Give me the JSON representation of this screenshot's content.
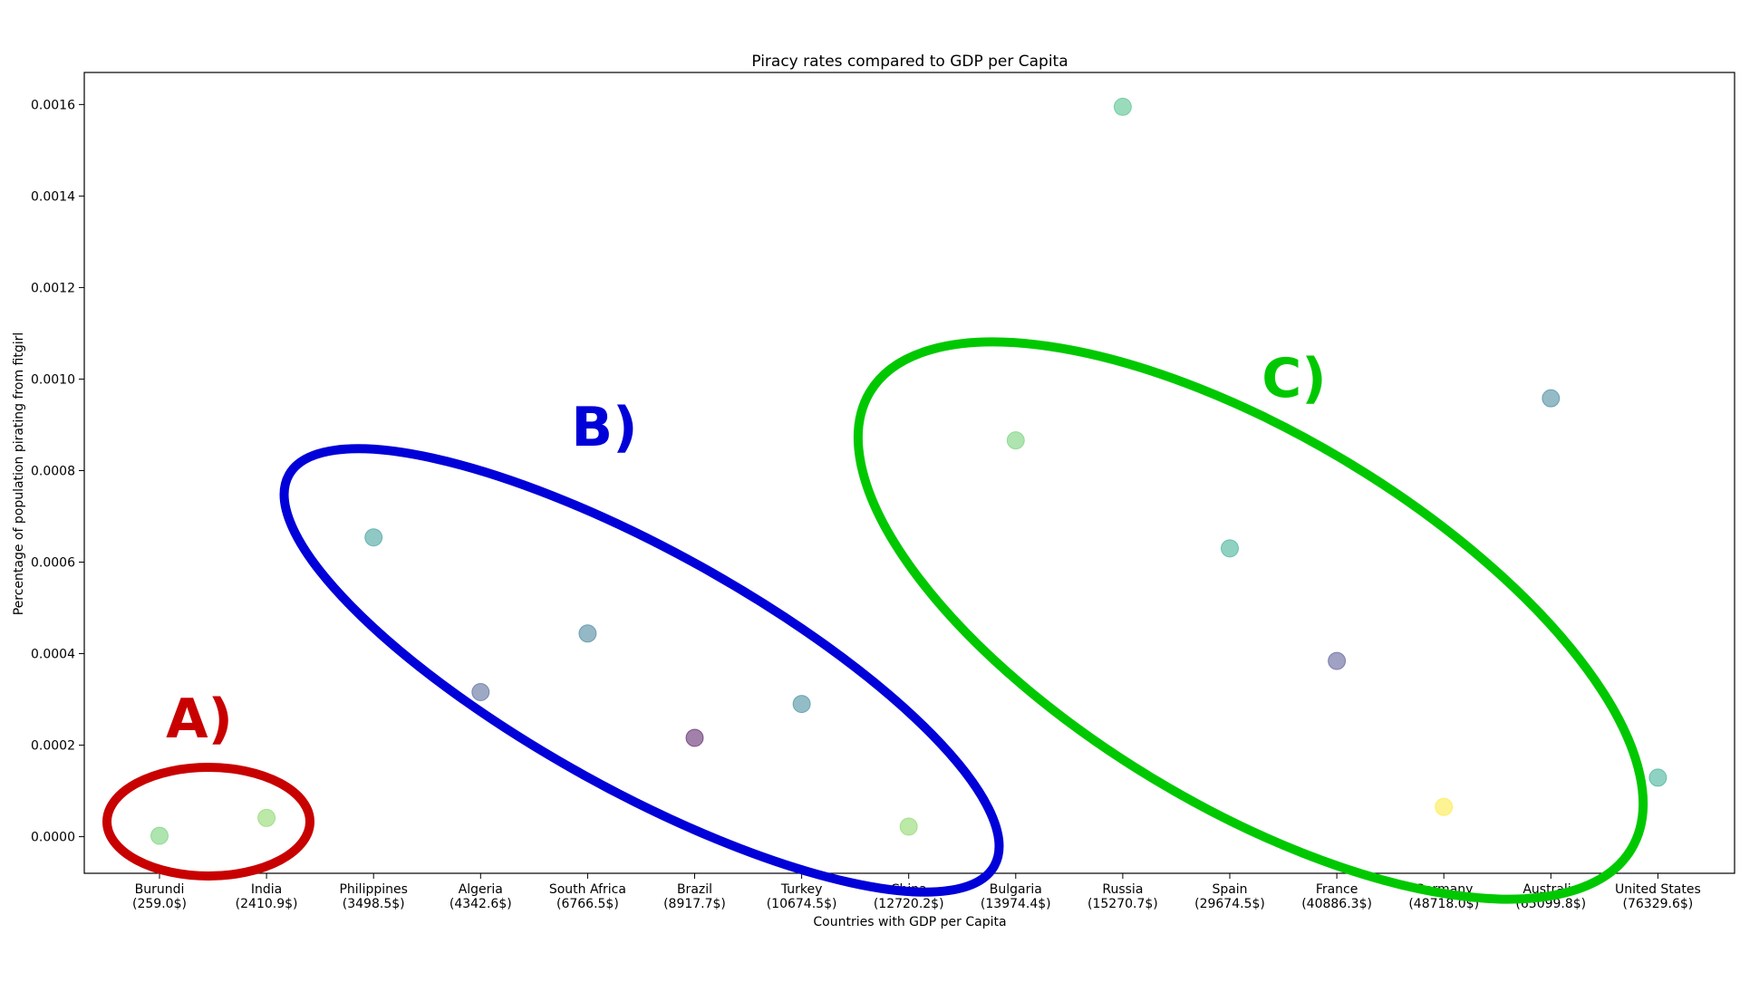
{
  "chart_data": {
    "type": "scatter",
    "title": "Piracy rates compared to GDP per Capita",
    "xlabel": "Countries with GDP per Capita",
    "ylabel": "Percentage of population pirating from fitgirl",
    "ylim": [
      -8e-05,
      0.00167
    ],
    "yticks": [
      "0.0000",
      "0.0002",
      "0.0004",
      "0.0006",
      "0.0008",
      "0.0010",
      "0.0012",
      "0.0014",
      "0.0016"
    ],
    "grid": false,
    "categories": [
      {
        "country": "Burundi",
        "gdp": "(259.0$)"
      },
      {
        "country": "India",
        "gdp": "(2410.9$)"
      },
      {
        "country": "Philippines",
        "gdp": "(3498.5$)"
      },
      {
        "country": "Algeria",
        "gdp": "(4342.6$)"
      },
      {
        "country": "South Africa",
        "gdp": "(6766.5$)"
      },
      {
        "country": "Brazil",
        "gdp": "(8917.7$)"
      },
      {
        "country": "Turkey",
        "gdp": "(10674.5$)"
      },
      {
        "country": "China",
        "gdp": "(12720.2$)"
      },
      {
        "country": "Bulgaria",
        "gdp": "(13974.4$)"
      },
      {
        "country": "Russia",
        "gdp": "(15270.7$)"
      },
      {
        "country": "Spain",
        "gdp": "(29674.5$)"
      },
      {
        "country": "France",
        "gdp": "(40886.3$)"
      },
      {
        "country": "Germany",
        "gdp": "(48718.0$)"
      },
      {
        "country": "Australia",
        "gdp": "(65099.8$)"
      },
      {
        "country": "United States",
        "gdp": "(76329.6$)"
      }
    ],
    "values": [
      2e-06,
      4.1e-05,
      0.000654,
      0.000316,
      0.000444,
      0.000216,
      0.00029,
      2.2e-05,
      0.000866,
      0.001595,
      0.00063,
      0.000384,
      6.5e-05,
      0.000958,
      0.000129
    ],
    "point_colors": [
      "#5ec962",
      "#7ad151",
      "#21918c",
      "#3b528b",
      "#2c728e",
      "#440154",
      "#287c8e",
      "#7ad151",
      "#5ec962",
      "#35b779",
      "#21a585",
      "#414487",
      "#fde725",
      "#2a788e",
      "#20a386"
    ],
    "annotations": [
      {
        "label": "A)",
        "color": "#c80000"
      },
      {
        "label": "B)",
        "color": "#0000d8"
      },
      {
        "label": "C)",
        "color": "#00c800"
      }
    ]
  }
}
